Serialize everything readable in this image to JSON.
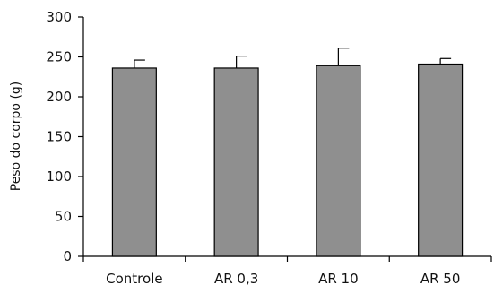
{
  "chart_data": {
    "type": "bar",
    "categories": [
      "Controle",
      "AR 0,3",
      "AR 10",
      "AR 50"
    ],
    "values": [
      236,
      236,
      239,
      241
    ],
    "errors": [
      10,
      15,
      22,
      7
    ],
    "ylabel": "Peso do corpo (g)",
    "xlabel": "",
    "ylim": [
      0,
      300
    ],
    "yticks": [
      0,
      50,
      100,
      150,
      200,
      250,
      300
    ],
    "bar_color": "#8f8f8f",
    "grid": false
  }
}
